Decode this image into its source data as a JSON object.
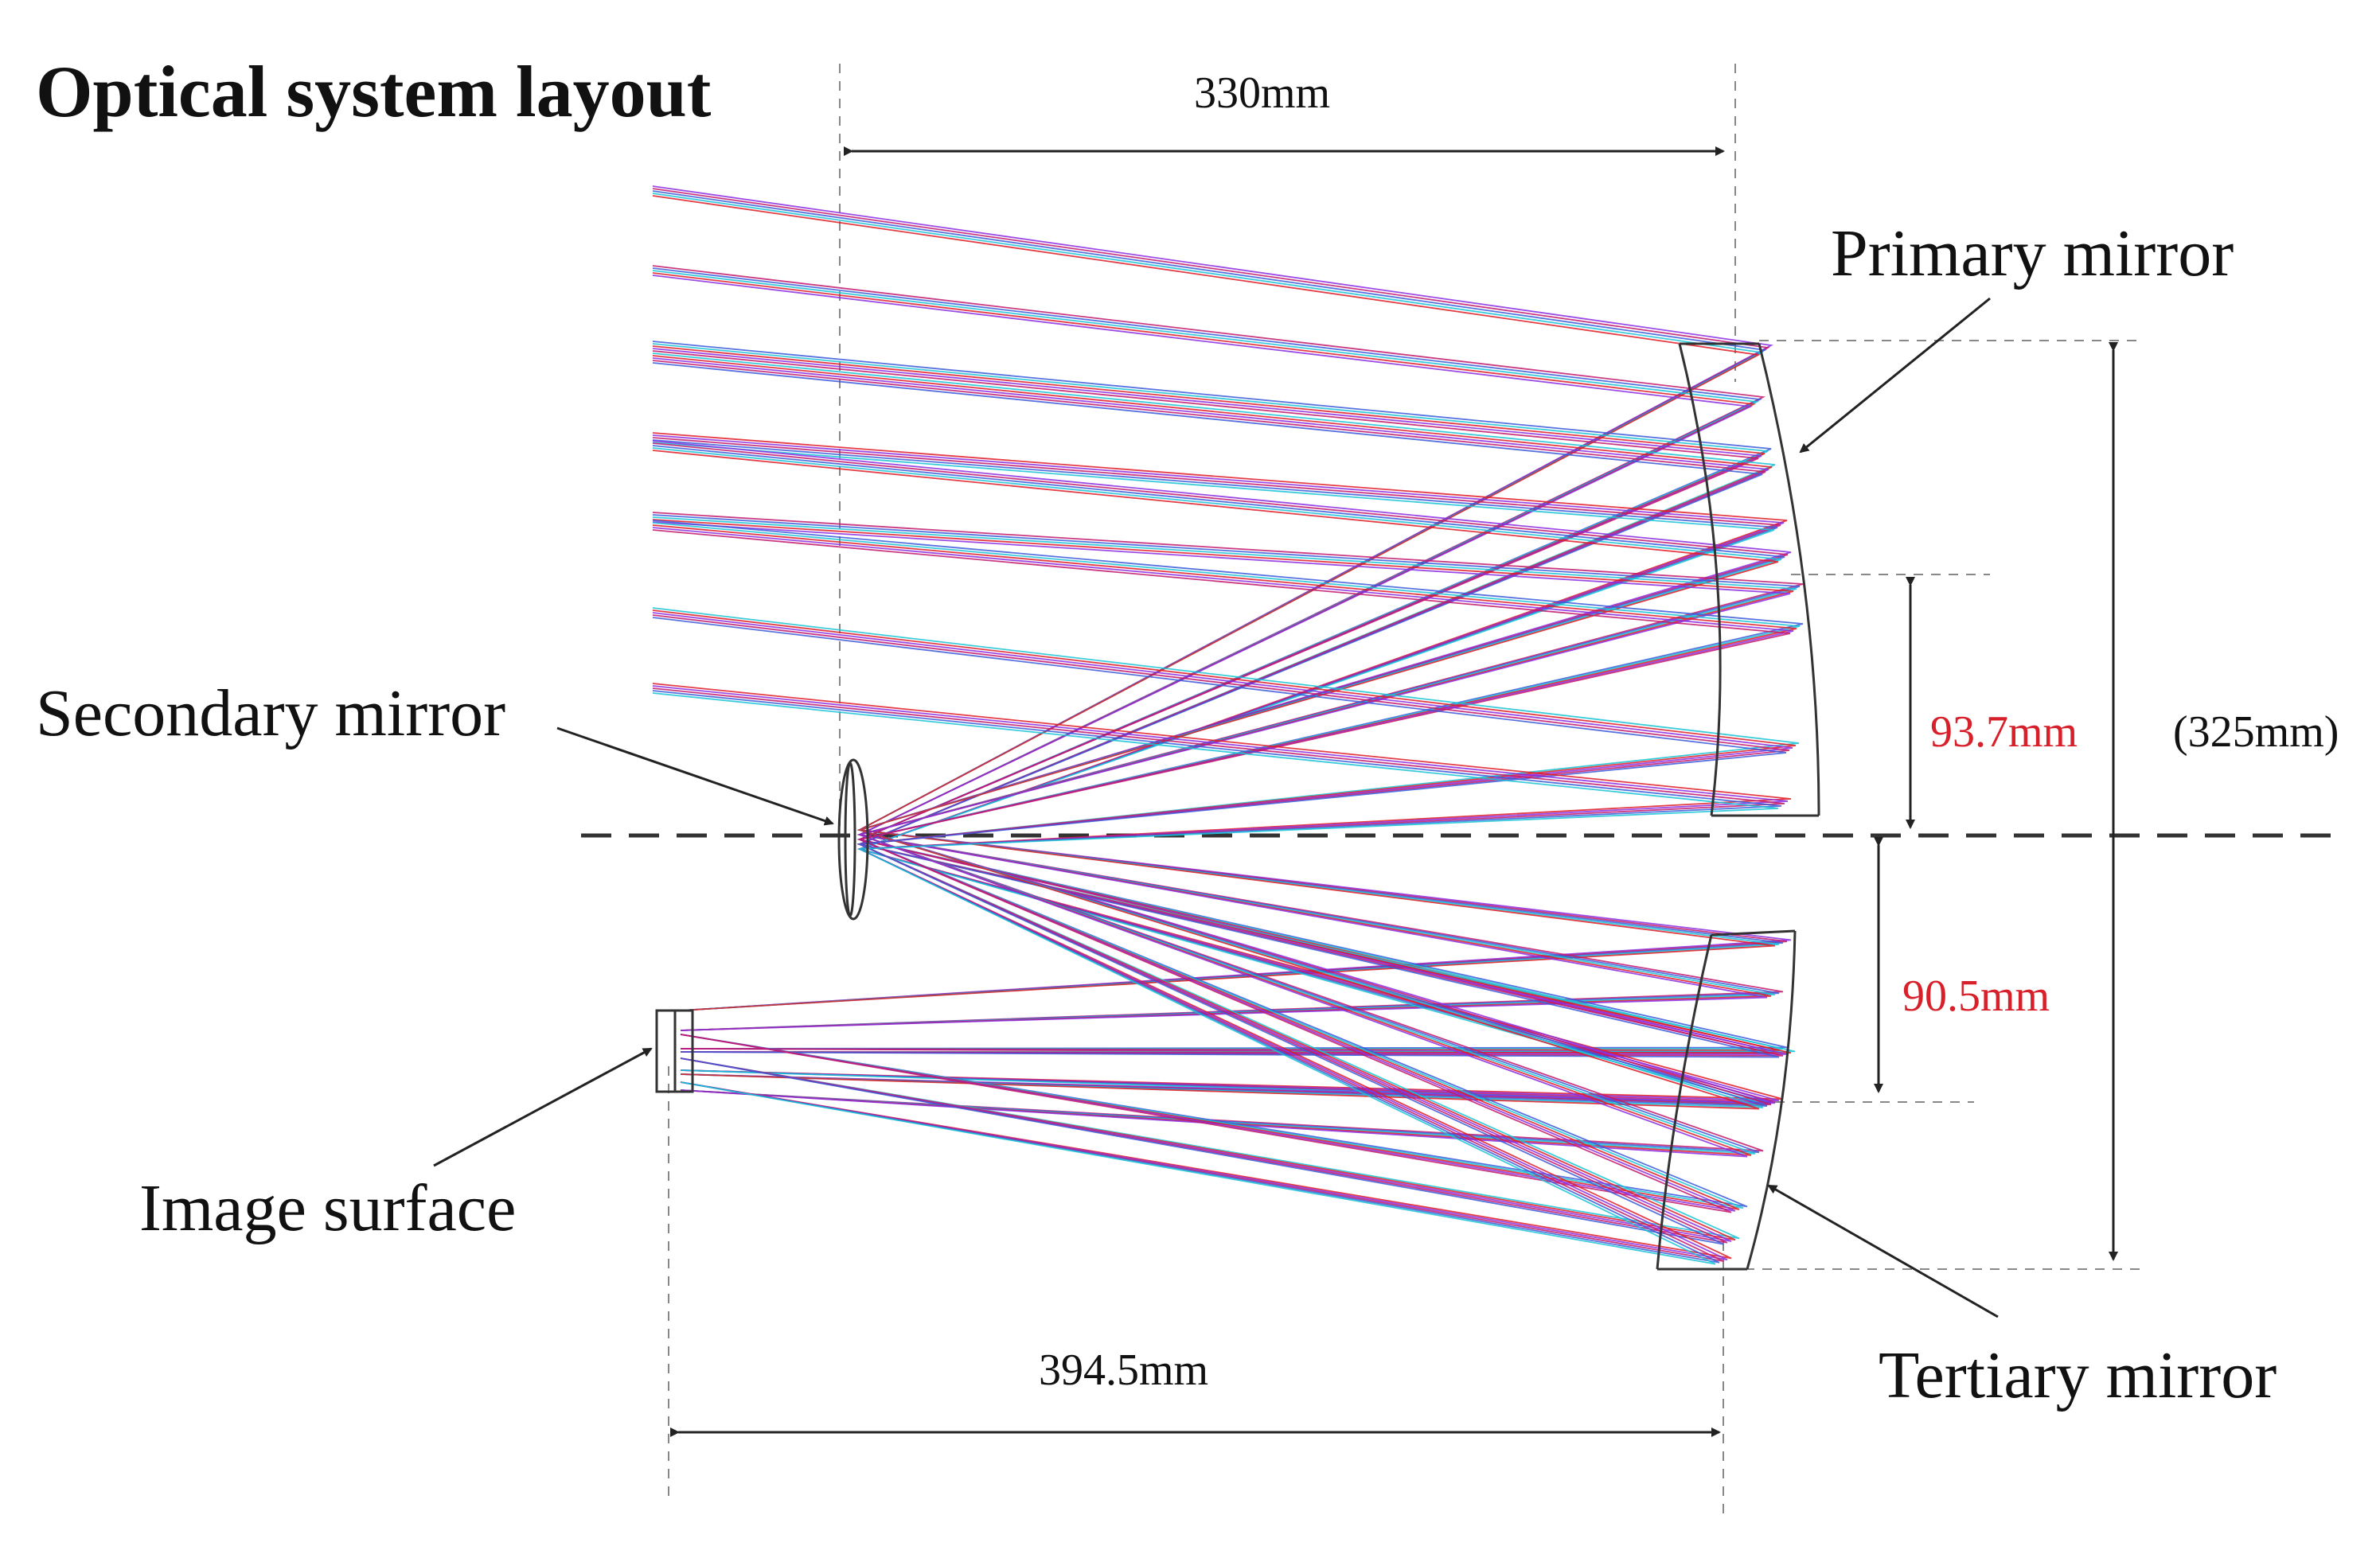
{
  "diagram": {
    "title": "Optical system layout",
    "labels": {
      "primary_mirror": "Primary mirror",
      "secondary_mirror": "Secondary mirror",
      "tertiary_mirror": "Tertiary mirror",
      "image_surface": "Image surface"
    },
    "dimensions": {
      "top_span": "330mm",
      "bottom_span": "394.5mm",
      "upper_offset": "93.7mm",
      "lower_offset": "90.5mm",
      "total_height": "(325mm)"
    },
    "colors": {
      "accent_red": "#d8202a",
      "ray_purple": "#8a2be2",
      "ray_magenta": "#c2186b",
      "ray_blue": "#3b5bdb",
      "ray_cyan": "#19c3d6",
      "ray_red": "#e01b24"
    }
  }
}
